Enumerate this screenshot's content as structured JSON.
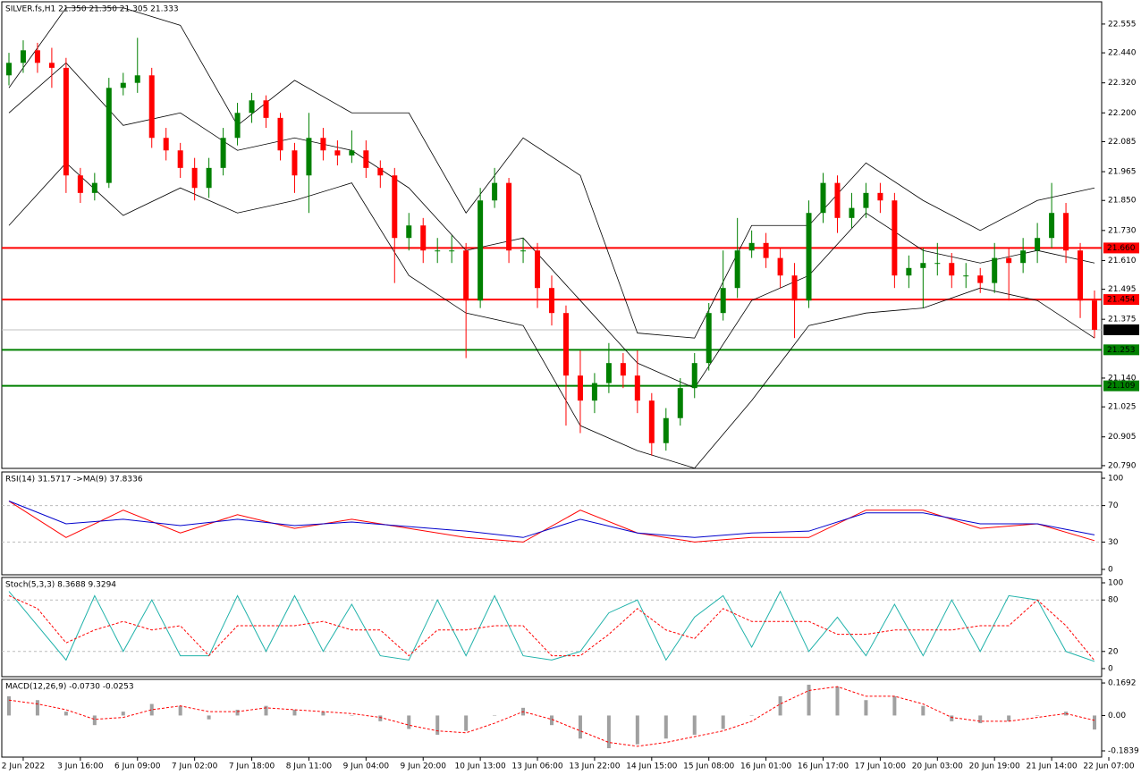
{
  "chart_data": [
    {
      "type": "candlestick",
      "title": "SILVER.fs,H1  21.350 21.350 21.305 21.333",
      "open": [
        22.35,
        22.4,
        22.45,
        22.4,
        22.38,
        21.95,
        21.88,
        21.92,
        22.3,
        22.32,
        22.35,
        22.1,
        22.05,
        21.98,
        21.9,
        21.98,
        22.1,
        22.2,
        22.25,
        22.18,
        22.05,
        21.95,
        22.1,
        22.05,
        22.03,
        22.05,
        21.98,
        21.95,
        21.7,
        21.75,
        21.65,
        21.65,
        21.65,
        21.45,
        21.85,
        21.92,
        21.65,
        21.65,
        21.5,
        21.4,
        21.15,
        21.05,
        21.12,
        21.2,
        21.15,
        21.05,
        20.88,
        20.98,
        21.1,
        21.2,
        21.4,
        21.5,
        21.65,
        21.68,
        21.62,
        21.55,
        21.45,
        21.8,
        21.92,
        21.78,
        21.82,
        21.88,
        21.85,
        21.55,
        21.58,
        21.6,
        21.6,
        21.55,
        21.55,
        21.52,
        21.62,
        21.6,
        21.65,
        21.7,
        21.8,
        21.65,
        21.45
      ],
      "high": [
        22.44,
        22.49,
        22.48,
        22.46,
        22.42,
        21.98,
        21.96,
        22.34,
        22.36,
        22.5,
        22.38,
        22.14,
        22.08,
        22.02,
        22.02,
        22.14,
        22.24,
        22.28,
        22.27,
        22.2,
        22.08,
        22.2,
        22.14,
        22.09,
        22.13,
        22.09,
        22.01,
        21.98,
        21.8,
        21.78,
        21.7,
        21.71,
        21.68,
        21.9,
        21.98,
        21.94,
        21.7,
        21.68,
        21.55,
        21.43,
        21.25,
        21.16,
        21.28,
        21.24,
        21.25,
        21.08,
        21.02,
        21.14,
        21.24,
        21.44,
        21.65,
        21.78,
        21.73,
        21.72,
        21.66,
        21.6,
        21.85,
        21.96,
        21.95,
        21.88,
        21.92,
        21.92,
        21.88,
        21.63,
        21.66,
        21.68,
        21.64,
        21.6,
        21.58,
        21.68,
        21.66,
        21.7,
        21.76,
        21.92,
        21.84,
        21.68,
        21.49
      ],
      "low": [
        22.31,
        22.36,
        22.36,
        22.3,
        21.88,
        21.84,
        21.85,
        21.9,
        22.27,
        22.28,
        22.06,
        22.01,
        21.94,
        21.85,
        21.86,
        21.95,
        22.07,
        22.16,
        22.14,
        22.01,
        21.88,
        21.8,
        22.01,
        21.99,
        22.0,
        21.94,
        21.9,
        21.52,
        21.65,
        21.6,
        21.6,
        21.6,
        21.22,
        21.42,
        21.82,
        21.6,
        21.6,
        21.42,
        21.35,
        20.95,
        20.92,
        21.0,
        21.08,
        21.1,
        21.0,
        20.83,
        20.85,
        20.95,
        21.06,
        21.17,
        21.37,
        21.46,
        21.62,
        21.58,
        21.5,
        21.3,
        21.42,
        21.76,
        21.72,
        21.74,
        21.78,
        21.8,
        21.5,
        21.5,
        21.42,
        21.55,
        21.5,
        21.5,
        21.48,
        21.48,
        21.45,
        21.56,
        21.6,
        21.66,
        21.6,
        21.38,
        21.3
      ],
      "close": [
        22.4,
        22.45,
        22.4,
        22.38,
        21.95,
        21.88,
        21.92,
        22.3,
        22.32,
        22.35,
        22.1,
        22.05,
        21.98,
        21.9,
        21.98,
        22.1,
        22.2,
        22.25,
        22.18,
        22.05,
        21.95,
        22.1,
        22.05,
        22.03,
        22.05,
        21.98,
        21.95,
        21.7,
        21.75,
        21.65,
        21.65,
        21.65,
        21.45,
        21.85,
        21.92,
        21.65,
        21.65,
        21.5,
        21.4,
        21.15,
        21.05,
        21.12,
        21.2,
        21.15,
        21.05,
        20.88,
        20.98,
        21.1,
        21.2,
        21.4,
        21.5,
        21.65,
        21.68,
        21.62,
        21.55,
        21.45,
        21.8,
        21.92,
        21.78,
        21.82,
        21.88,
        21.85,
        21.55,
        21.58,
        21.6,
        21.6,
        21.55,
        21.55,
        21.52,
        21.62,
        21.6,
        21.65,
        21.7,
        21.8,
        21.65,
        21.45,
        21.333
      ],
      "up_color": "#008000",
      "down_color": "#ff0000",
      "bands": {
        "x": [
          0,
          4,
          8,
          12,
          16,
          20,
          24,
          28,
          32,
          36,
          40,
          44,
          48,
          52,
          56,
          60,
          64,
          68,
          72,
          76
        ],
        "upper": [
          22.3,
          22.62,
          22.62,
          22.55,
          22.15,
          22.33,
          22.2,
          22.2,
          21.8,
          22.1,
          21.95,
          21.32,
          21.3,
          21.75,
          21.75,
          22.0,
          21.85,
          21.73,
          21.85,
          21.9
        ],
        "middle": [
          22.2,
          22.4,
          22.15,
          22.2,
          22.05,
          22.1,
          22.05,
          21.9,
          21.65,
          21.7,
          21.45,
          21.2,
          21.1,
          21.45,
          21.55,
          21.8,
          21.65,
          21.6,
          21.65,
          21.6
        ],
        "lower": [
          21.75,
          22.0,
          21.79,
          21.9,
          21.8,
          21.85,
          21.92,
          21.55,
          21.4,
          21.35,
          20.95,
          20.85,
          20.78,
          21.05,
          21.35,
          21.4,
          21.42,
          21.5,
          21.45,
          21.3
        ],
        "color": "#000000"
      },
      "levels": [
        {
          "value": 21.66,
          "label": "21.660",
          "color": "#ff0000"
        },
        {
          "value": 21.454,
          "label": "21.454",
          "color": "#ff0000"
        },
        {
          "value": 21.253,
          "label": "21.253",
          "color": "#008000"
        },
        {
          "value": 21.109,
          "label": "21.109",
          "color": "#008000"
        }
      ],
      "last_price": 21.333,
      "xlim": [
        -0.5,
        76.5
      ],
      "ylim": [
        20.779,
        22.644
      ],
      "yticks": [
        22.555,
        {
          "value": 22.44,
          "label": "22.440"
        },
        {
          "value": 22.32,
          "label": "22.320"
        },
        {
          "value": 22.2,
          "label": "22.200"
        },
        22.085,
        21.965,
        {
          "value": 21.85,
          "label": "21.850"
        },
        {
          "value": 21.73,
          "label": "21.730"
        },
        {
          "value": 21.61,
          "label": "21.610"
        },
        21.495,
        21.375,
        {
          "value": 21.14,
          "label": "21.140"
        },
        21.025,
        20.905,
        {
          "value": 20.79,
          "label": "20.790"
        }
      ],
      "xticks": [
        {
          "value": 1,
          "label": "2 Jun 2022"
        },
        {
          "value": 5,
          "label": "3 Jun 16:00"
        },
        {
          "value": 9,
          "label": "6 Jun 09:00"
        },
        {
          "value": 13,
          "label": "7 Jun 02:00"
        },
        {
          "value": 17,
          "label": "7 Jun 18:00"
        },
        {
          "value": 21,
          "label": "8 Jun 11:00"
        },
        {
          "value": 25,
          "label": "9 Jun 04:00"
        },
        {
          "value": 29,
          "label": "9 Jun 20:00"
        },
        {
          "value": 33,
          "label": "10 Jun 13:00"
        },
        {
          "value": 37,
          "label": "13 Jun 06:00"
        },
        {
          "value": 41,
          "label": "13 Jun 22:00"
        },
        {
          "value": 45,
          "label": "14 Jun 15:00"
        },
        {
          "value": 49,
          "label": "15 Jun 08:00"
        },
        {
          "value": 53,
          "label": "16 Jun 01:00"
        },
        {
          "value": 57,
          "label": "16 Jun 17:00"
        },
        {
          "value": 61,
          "label": "17 Jun 10:00"
        },
        {
          "value": 65,
          "label": "20 Jun 03:00"
        },
        {
          "value": 69,
          "label": "20 Jun 19:00"
        },
        {
          "value": 73,
          "label": "21 Jun 14:00"
        },
        {
          "value": 77,
          "label": "22 Jun 07:00"
        }
      ]
    },
    {
      "type": "line",
      "title": "RSI(14) 31.5717  ->MA(9) 37.8336",
      "x": [
        0,
        4,
        8,
        12,
        16,
        20,
        24,
        28,
        32,
        36,
        40,
        44,
        48,
        52,
        56,
        60,
        64,
        68,
        72,
        76
      ],
      "series": [
        {
          "color": "#ff0000",
          "values": [
            75,
            35,
            65,
            40,
            60,
            45,
            55,
            45,
            35,
            30,
            65,
            40,
            30,
            35,
            35,
            65,
            65,
            45,
            50,
            31.5717
          ]
        },
        {
          "color": "#0000cc",
          "values": [
            75,
            50,
            55,
            48,
            55,
            48,
            52,
            47,
            42,
            35,
            55,
            40,
            35,
            40,
            42,
            62,
            62,
            50,
            50,
            37.8336
          ]
        }
      ],
      "xlim": [
        -0.5,
        76.5
      ],
      "ylim": [
        -5.9,
        106.9
      ],
      "yticks": [
        100,
        70,
        30,
        0
      ],
      "levels": [
        70,
        30
      ]
    },
    {
      "type": "line",
      "title": "Stoch(5,3,3) 8.3688 9.3294",
      "x": [
        0,
        2,
        4,
        6,
        8,
        10,
        12,
        14,
        16,
        18,
        20,
        22,
        24,
        26,
        28,
        30,
        32,
        34,
        36,
        38,
        40,
        42,
        44,
        46,
        48,
        50,
        52,
        54,
        56,
        58,
        60,
        62,
        64,
        66,
        68,
        70,
        72,
        74,
        76
      ],
      "series": [
        {
          "color": "#20b2aa",
          "values": [
            90,
            50,
            10,
            85,
            20,
            80,
            15,
            15,
            85,
            20,
            85,
            20,
            75,
            15,
            10,
            80,
            15,
            85,
            15,
            10,
            20,
            65,
            80,
            10,
            60,
            85,
            25,
            90,
            20,
            60,
            15,
            75,
            15,
            80,
            20,
            85,
            80,
            20,
            8.3688
          ]
        },
        {
          "color": "#ff0000",
          "dashed": true,
          "values": [
            85,
            70,
            30,
            45,
            55,
            45,
            50,
            15,
            50,
            50,
            50,
            55,
            45,
            45,
            15,
            45,
            45,
            50,
            50,
            15,
            15,
            40,
            70,
            45,
            35,
            70,
            55,
            55,
            55,
            40,
            40,
            45,
            45,
            45,
            50,
            50,
            80,
            50,
            9.3294
          ]
        }
      ],
      "xlim": [
        -0.5,
        76.5
      ],
      "ylim": [
        -9.4,
        106.25
      ],
      "yticks": [
        100,
        80,
        20,
        0
      ],
      "levels": [
        80,
        20
      ]
    },
    {
      "type": "macd",
      "title": "MACD(12,26,9) -0.0730 -0.0253",
      "x": [
        0,
        2,
        4,
        6,
        8,
        10,
        12,
        14,
        16,
        18,
        20,
        22,
        24,
        26,
        28,
        30,
        32,
        34,
        36,
        38,
        40,
        42,
        44,
        46,
        48,
        50,
        52,
        54,
        56,
        58,
        60,
        62,
        64,
        66,
        68,
        70,
        72,
        74,
        76
      ],
      "series": [
        {
          "color": "#a0a0a0",
          "values": [
            0.1,
            0.08,
            0.02,
            -0.05,
            0.02,
            0.06,
            0.05,
            -0.02,
            0.03,
            0.05,
            0.03,
            0.02,
            0.0,
            -0.03,
            -0.07,
            -0.1,
            -0.08,
            0.0,
            0.04,
            -0.05,
            -0.12,
            -0.17,
            -0.15,
            -0.12,
            -0.1,
            -0.07,
            0.0,
            0.1,
            0.16,
            0.15,
            0.08,
            0.1,
            0.05,
            -0.03,
            -0.04,
            -0.03,
            0.0,
            0.02,
            -0.073
          ]
        },
        {
          "color": "#ff0000",
          "dashed": true,
          "values": [
            0.08,
            0.06,
            0.03,
            -0.02,
            -0.01,
            0.03,
            0.05,
            0.02,
            0.02,
            0.04,
            0.03,
            0.02,
            0.01,
            -0.01,
            -0.05,
            -0.08,
            -0.09,
            -0.04,
            0.02,
            -0.02,
            -0.08,
            -0.14,
            -0.16,
            -0.14,
            -0.11,
            -0.08,
            -0.03,
            0.06,
            0.13,
            0.15,
            0.1,
            0.1,
            0.06,
            -0.01,
            -0.03,
            -0.03,
            -0.01,
            0.01,
            -0.0253
          ]
        }
      ],
      "xlim": [
        -0.5,
        76.5
      ],
      "ylim": [
        -0.2165,
        0.188
      ],
      "yticks": [
        0.1692,
        {
          "value": 0,
          "label": "0.00"
        },
        -0.1839
      ]
    }
  ]
}
